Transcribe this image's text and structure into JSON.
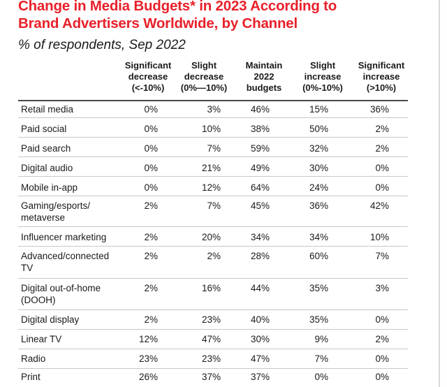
{
  "chart_data": {
    "type": "table",
    "title_lines": [
      "Change in Media Budgets* in 2023 According to",
      "Brand Advertisers Worldwide, by Channel"
    ],
    "subtitle": "% of respondents, Sep 2022",
    "columns": [
      {
        "key": "sig_dec",
        "header_lines": [
          "Significant",
          "decrease",
          "(<-10%)"
        ]
      },
      {
        "key": "slight_dec",
        "header_lines": [
          "Slight",
          "decrease",
          "(0%—10%)"
        ]
      },
      {
        "key": "maintain",
        "header_lines": [
          "Maintain",
          "2022",
          "budgets"
        ]
      },
      {
        "key": "slight_inc",
        "header_lines": [
          "Slight",
          "increase",
          "(0%-10%)"
        ]
      },
      {
        "key": "sig_inc",
        "header_lines": [
          "Significant",
          "increase",
          "(>10%)"
        ]
      }
    ],
    "rows": [
      {
        "label_lines": [
          "Retail media"
        ],
        "values": [
          "0%",
          "3%",
          "46%",
          "15%",
          "36%"
        ]
      },
      {
        "label_lines": [
          "Paid social"
        ],
        "values": [
          "0%",
          "10%",
          "38%",
          "50%",
          "2%"
        ]
      },
      {
        "label_lines": [
          "Paid search"
        ],
        "values": [
          "0%",
          "7%",
          "59%",
          "32%",
          "2%"
        ]
      },
      {
        "label_lines": [
          "Digital audio"
        ],
        "values": [
          "0%",
          "21%",
          "49%",
          "30%",
          "0%"
        ]
      },
      {
        "label_lines": [
          "Mobile in-app"
        ],
        "values": [
          "0%",
          "12%",
          "64%",
          "24%",
          "0%"
        ]
      },
      {
        "label_lines": [
          "Gaming/esports/",
          "metaverse"
        ],
        "values": [
          "2%",
          "7%",
          "45%",
          "36%",
          "42%"
        ]
      },
      {
        "label_lines": [
          "Influencer marketing"
        ],
        "values": [
          "2%",
          "20%",
          "34%",
          "34%",
          "10%"
        ]
      },
      {
        "label_lines": [
          "Advanced/connected",
          "TV"
        ],
        "values": [
          "2%",
          "2%",
          "28%",
          "60%",
          "7%"
        ]
      },
      {
        "label_lines": [
          "Digital out-of-home",
          "(DOOH)"
        ],
        "values": [
          "2%",
          "16%",
          "44%",
          "35%",
          "3%"
        ]
      },
      {
        "label_lines": [
          "Digital display"
        ],
        "values": [
          "2%",
          "23%",
          "40%",
          "35%",
          "0%"
        ]
      },
      {
        "label_lines": [
          "Linear TV"
        ],
        "values": [
          "12%",
          "47%",
          "30%",
          "9%",
          "2%"
        ]
      },
      {
        "label_lines": [
          "Radio"
        ],
        "values": [
          "23%",
          "23%",
          "47%",
          "7%",
          "0%"
        ]
      },
      {
        "label_lines": [
          "Print"
        ],
        "values": [
          "26%",
          "37%",
          "37%",
          "0%",
          "0%"
        ]
      }
    ]
  },
  "colors": {
    "title": "#e8202a",
    "text": "#1a1a1a",
    "header_rule": "#4a4a4a",
    "row_rule": "#c8c8c8"
  }
}
